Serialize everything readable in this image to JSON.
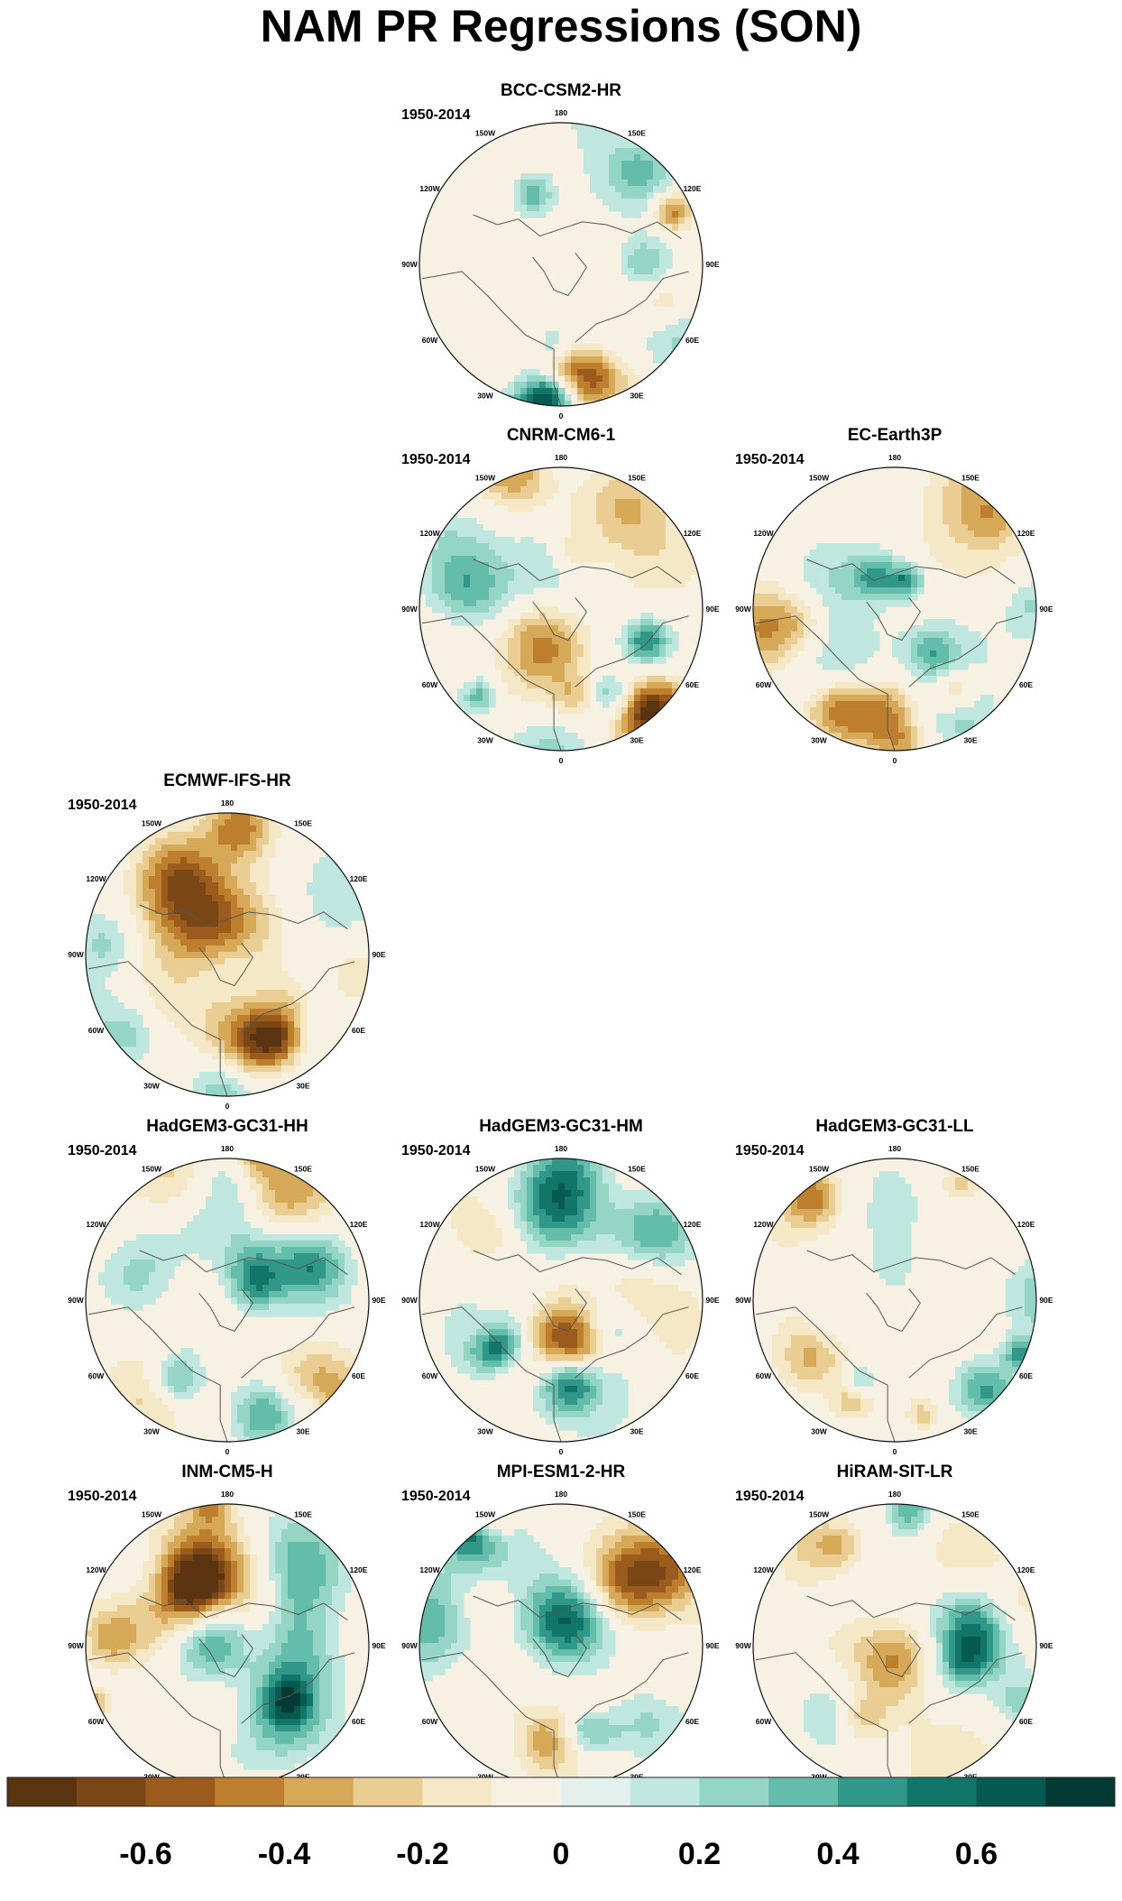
{
  "title": "NAM PR Regressions (SON)",
  "period": "1950-2014",
  "panels": [
    {
      "row": 0,
      "col": 1,
      "model": "BCC-CSM2-HR",
      "seed": 11
    },
    {
      "row": 1,
      "col": 1,
      "model": "CNRM-CM6-1",
      "seed": 23
    },
    {
      "row": 1,
      "col": 2,
      "model": "EC-Earth3P",
      "seed": 37
    },
    {
      "row": 2,
      "col": 0,
      "model": "ECMWF-IFS-HR",
      "seed": 41
    },
    {
      "row": 3,
      "col": 0,
      "model": "HadGEM3-GC31-HH",
      "seed": 53
    },
    {
      "row": 3,
      "col": 1,
      "model": "HadGEM3-GC31-HM",
      "seed": 67
    },
    {
      "row": 3,
      "col": 2,
      "model": "HadGEM3-GC31-LL",
      "seed": 71
    },
    {
      "row": 4,
      "col": 0,
      "model": "INM-CM5-H",
      "seed": 83
    },
    {
      "row": 4,
      "col": 1,
      "model": "MPI-ESM1-2-HR",
      "seed": 97
    },
    {
      "row": 4,
      "col": 2,
      "model": "HiRAM-SIT-LR",
      "seed": 101
    }
  ],
  "longitude_labels": [
    "180",
    "150E",
    "120E",
    "90E",
    "60E",
    "30E",
    "0",
    "30W",
    "60W",
    "90W",
    "120W",
    "150W"
  ],
  "colorbar": {
    "colors": [
      "#5a3310",
      "#7a4616",
      "#9a5b1c",
      "#bd7f2e",
      "#d6a959",
      "#e9cd93",
      "#f5e8c6",
      "#f6f1e2",
      "#e4f0ec",
      "#c0e7df",
      "#95d5c6",
      "#64bcaa",
      "#319789",
      "#12756a",
      "#065a50",
      "#033a33"
    ],
    "tick_labels": [
      "-0.6",
      "-0.4",
      "-0.2",
      "0",
      "0.2",
      "0.4",
      "0.6"
    ],
    "tick_values": [
      -0.6,
      -0.4,
      -0.2,
      0,
      0.2,
      0.4,
      0.6
    ],
    "range": [
      -0.8,
      0.8
    ]
  },
  "chart_data": {
    "type": "heatmap",
    "title": "NAM PR Regressions (SON)",
    "projection": "North polar stereographic",
    "period": "1950-2014",
    "models": [
      "BCC-CSM2-HR",
      "CNRM-CM6-1",
      "EC-Earth3P",
      "ECMWF-IFS-HR",
      "HadGEM3-GC31-HH",
      "HadGEM3-GC31-HM",
      "HadGEM3-GC31-LL",
      "INM-CM5-H",
      "MPI-ESM1-2-HR",
      "HiRAM-SIT-LR"
    ],
    "color_levels": [
      -0.8,
      -0.7,
      -0.6,
      -0.5,
      -0.4,
      -0.3,
      -0.2,
      -0.1,
      0,
      0.1,
      0.2,
      0.3,
      0.4,
      0.5,
      0.6,
      0.7,
      0.8
    ],
    "colorbar_ticks": [
      -0.6,
      -0.4,
      -0.2,
      0,
      0.2,
      0.4,
      0.6
    ],
    "colormap": "brown-white-teal (diverging)"
  }
}
